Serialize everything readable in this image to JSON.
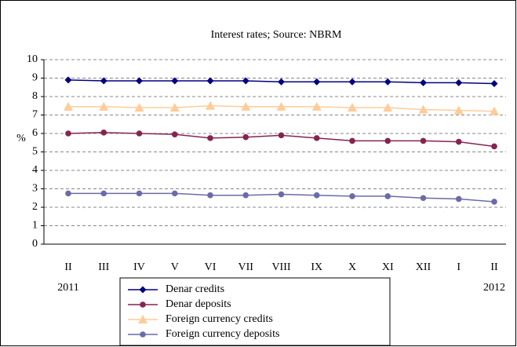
{
  "chart_data": {
    "type": "line",
    "title": "Interest rates; Source: NBRM",
    "y_label": "%",
    "categories": [
      "II",
      "III",
      "IV",
      "V",
      "VI",
      "VII",
      "VIII",
      "IX",
      "X",
      "XI",
      "XII",
      "I",
      "II"
    ],
    "x_group_labels": [
      "2011",
      "2012"
    ],
    "ylim": [
      0,
      10
    ],
    "yticks": [
      0,
      1,
      2,
      3,
      4,
      5,
      6,
      7,
      8,
      9,
      10
    ],
    "grid": true,
    "legend": "bottom",
    "series": [
      {
        "name": "Denar credits",
        "color": "#000080",
        "marker": "diamond",
        "values": [
          8.9,
          8.85,
          8.85,
          8.85,
          8.85,
          8.85,
          8.8,
          8.8,
          8.8,
          8.8,
          8.75,
          8.75,
          8.7
        ]
      },
      {
        "name": "Denar deposits",
        "color": "#862451",
        "marker": "circle",
        "values": [
          6.0,
          6.05,
          6.0,
          5.95,
          5.75,
          5.8,
          5.9,
          5.75,
          5.6,
          5.6,
          5.6,
          5.55,
          5.3
        ]
      },
      {
        "name": "Foreign currency credits",
        "color": "#ffcc99",
        "marker": "triangle",
        "values": [
          7.45,
          7.45,
          7.4,
          7.4,
          7.5,
          7.45,
          7.45,
          7.45,
          7.4,
          7.4,
          7.3,
          7.25,
          7.2
        ]
      },
      {
        "name": "Foreign currency deposits",
        "color": "#6b6ba6",
        "marker": "circle",
        "values": [
          2.75,
          2.75,
          2.75,
          2.75,
          2.65,
          2.65,
          2.7,
          2.65,
          2.6,
          2.6,
          2.5,
          2.45,
          2.3
        ]
      }
    ]
  }
}
